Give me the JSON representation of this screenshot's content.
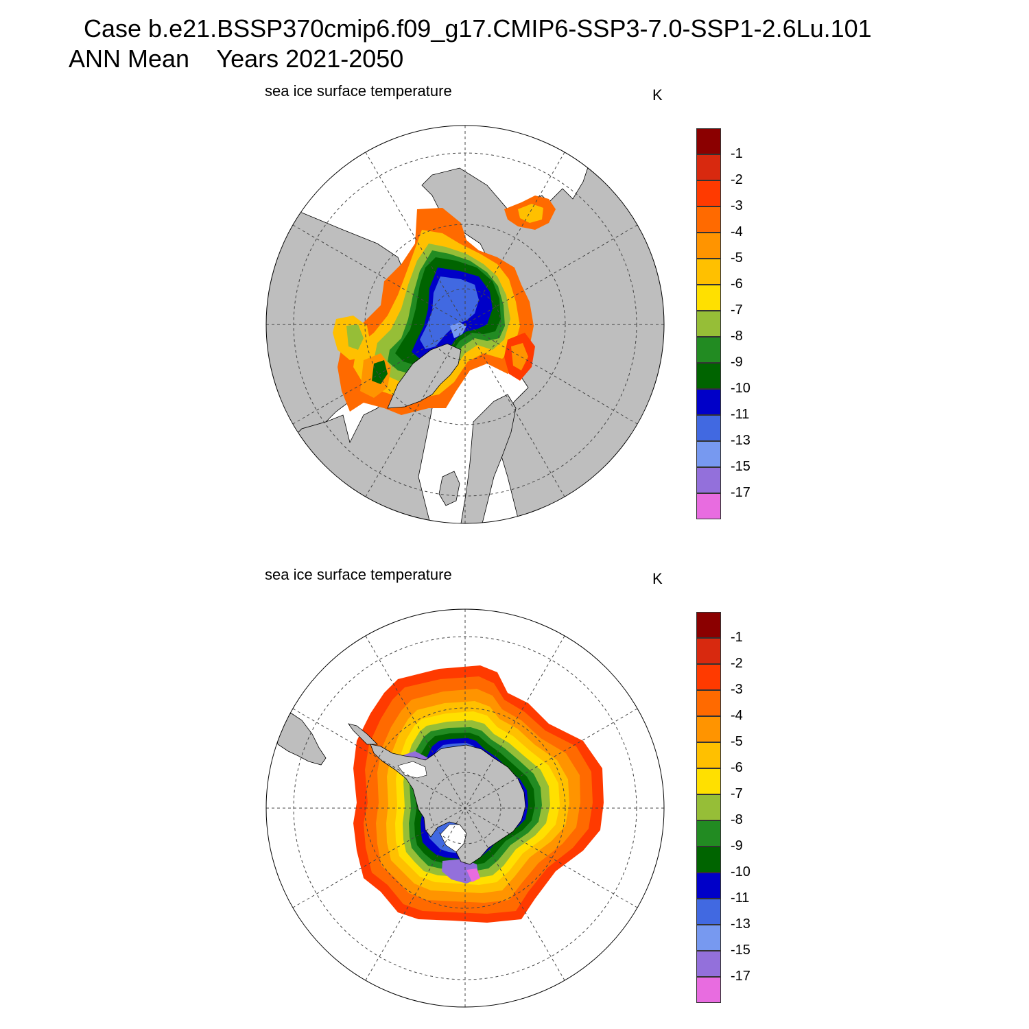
{
  "title": {
    "line1": "Case b.e21.BSSP370cmip6.f09_g17.CMIP6-SSP3-7.0-SSP1-2.6Lu.101",
    "line2": "ANN Mean    Years 2021-2050"
  },
  "colors": {
    "land": "#bebebe",
    "ocean": "#ffffff",
    "grid": "#444444"
  },
  "colorbar": {
    "labels": [
      "-1",
      "-2",
      "-3",
      "-4",
      "-5",
      "-6",
      "-7",
      "-8",
      "-9",
      "-10",
      "-11",
      "-13",
      "-15",
      "-17"
    ],
    "colors": [
      "#8b0000",
      "#d8290f",
      "#ff3a00",
      "#ff6a00",
      "#ff9400",
      "#ffc000",
      "#ffe000",
      "#96be37",
      "#228b22",
      "#006400",
      "#0000c8",
      "#4169e1",
      "#7799f0",
      "#9370db",
      "#e86ce0"
    ]
  },
  "panels": [
    {
      "id": "north",
      "title": "sea ice surface temperature",
      "unit": "K",
      "hemisphere": "Arctic"
    },
    {
      "id": "south",
      "title": "sea ice surface temperature",
      "unit": "K",
      "hemisphere": "Antarctic"
    }
  ]
}
